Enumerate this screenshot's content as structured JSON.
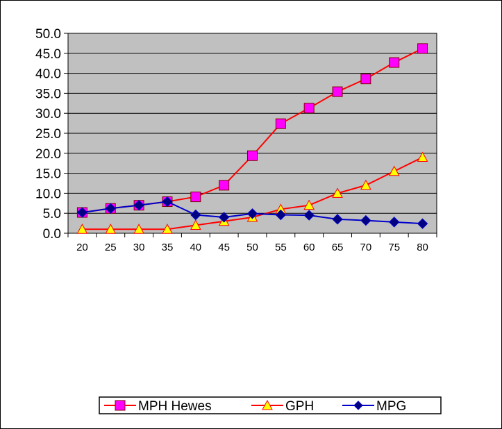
{
  "chart_data": {
    "type": "line",
    "x": [
      20,
      25,
      30,
      35,
      40,
      45,
      50,
      55,
      60,
      65,
      70,
      75,
      80
    ],
    "y_ticks": [
      "0.0",
      "5.0",
      "10.0",
      "15.0",
      "20.0",
      "25.0",
      "30.0",
      "35.0",
      "40.0",
      "45.0",
      "50.0"
    ],
    "ylim": [
      0,
      50
    ],
    "grid": "horizontal",
    "plot_background": "#c0c0c0",
    "legend_position": "bottom",
    "series": [
      {
        "name": "MPH Hewes",
        "color": "#ff0000",
        "marker": "square",
        "marker_fill": "#ff00ff",
        "values": [
          5.2,
          6.2,
          7.0,
          7.9,
          9.1,
          12.0,
          19.4,
          27.4,
          31.3,
          35.4,
          38.6,
          42.7,
          46.2
        ]
      },
      {
        "name": "GPH",
        "color": "#ff0000",
        "marker": "triangle",
        "marker_fill": "#ffff00",
        "values": [
          1.0,
          1.0,
          1.0,
          1.0,
          2.0,
          3.0,
          4.0,
          6.0,
          7.0,
          10.0,
          12.0,
          15.5,
          19.0
        ]
      },
      {
        "name": "MPG",
        "color": "#0000cc",
        "marker": "diamond",
        "marker_fill": "#000080",
        "values": [
          5.2,
          6.2,
          7.0,
          7.9,
          4.6,
          4.0,
          4.9,
          4.6,
          4.5,
          3.5,
          3.2,
          2.8,
          2.4
        ]
      }
    ]
  }
}
